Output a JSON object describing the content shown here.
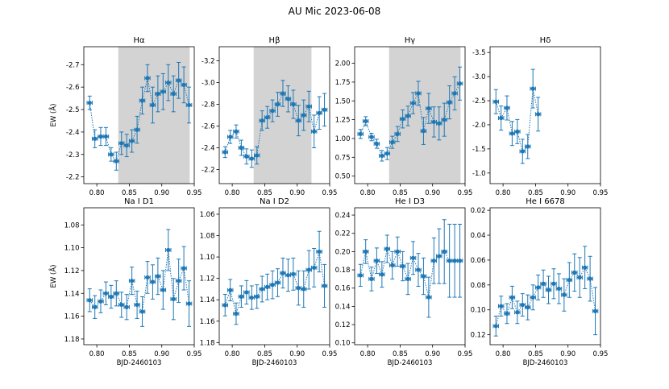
{
  "figure_title": "AU Mic 2023-06-08",
  "colors": {
    "series": "#1f77b4",
    "shade": "#d3d3d3"
  },
  "chart_data": [
    {
      "type": "scatter",
      "title": "Hα",
      "xlabel": "",
      "ylabel": "EW (Å)",
      "xlim": [
        0.78,
        0.95
      ],
      "ylim": [
        -2.17,
        -2.78
      ],
      "inverted_y": true,
      "xticks": [
        "0.80",
        "0.85",
        "0.90",
        "0.95"
      ],
      "xtick_values": [
        0.8,
        0.85,
        0.9,
        0.95
      ],
      "yticks": [
        "-2.2",
        "-2.3",
        "-2.4",
        "-2.5",
        "-2.6",
        "-2.7"
      ],
      "ytick_values": [
        -2.2,
        -2.3,
        -2.4,
        -2.5,
        -2.6,
        -2.7
      ],
      "shade": [
        0.833,
        0.943
      ],
      "x": [
        0.789,
        0.797,
        0.806,
        0.814,
        0.822,
        0.83,
        0.838,
        0.846,
        0.854,
        0.862,
        0.87,
        0.878,
        0.886,
        0.894,
        0.902,
        0.91,
        0.918,
        0.926,
        0.934,
        0.942
      ],
      "y": [
        -2.53,
        -2.37,
        -2.38,
        -2.38,
        -2.3,
        -2.27,
        -2.35,
        -2.34,
        -2.36,
        -2.41,
        -2.54,
        -2.64,
        -2.52,
        -2.57,
        -2.58,
        -2.62,
        -2.57,
        -2.63,
        -2.61,
        -2.52
      ],
      "yerr": [
        0.03,
        0.04,
        0.04,
        0.04,
        0.03,
        0.04,
        0.05,
        0.05,
        0.05,
        0.06,
        0.06,
        0.06,
        0.08,
        0.08,
        0.08,
        0.08,
        0.08,
        0.08,
        0.08,
        0.08
      ]
    },
    {
      "type": "scatter",
      "title": "Hβ",
      "xlabel": "",
      "ylabel": "",
      "xlim": [
        0.78,
        0.95
      ],
      "ylim": [
        -2.07,
        -3.33
      ],
      "inverted_y": true,
      "xticks": [
        "0.80",
        "0.85",
        "0.90",
        "0.95"
      ],
      "xtick_values": [
        0.8,
        0.85,
        0.9,
        0.95
      ],
      "yticks": [
        "-2.2",
        "-2.4",
        "-2.6",
        "-2.8",
        "-3.0",
        "-3.2"
      ],
      "ytick_values": [
        -2.2,
        -2.4,
        -2.6,
        -2.8,
        -3.0,
        -3.2
      ],
      "shade": [
        0.833,
        0.922
      ],
      "x": [
        0.789,
        0.797,
        0.806,
        0.814,
        0.822,
        0.83,
        0.838,
        0.846,
        0.854,
        0.862,
        0.87,
        0.878,
        0.886,
        0.894,
        0.902,
        0.91,
        0.918,
        0.926,
        0.934,
        0.942
      ],
      "y": [
        -2.36,
        -2.5,
        -2.55,
        -2.4,
        -2.32,
        -2.3,
        -2.33,
        -2.65,
        -2.68,
        -2.74,
        -2.8,
        -2.9,
        -2.85,
        -2.8,
        -2.65,
        -2.7,
        -2.78,
        -2.55,
        -2.72,
        -2.75
      ],
      "yerr": [
        0.05,
        0.06,
        0.06,
        0.07,
        0.07,
        0.08,
        0.08,
        0.09,
        0.1,
        0.1,
        0.11,
        0.12,
        0.12,
        0.13,
        0.14,
        0.14,
        0.14,
        0.15,
        0.15,
        0.15
      ]
    },
    {
      "type": "scatter",
      "title": "Hγ",
      "xlabel": "",
      "ylabel": "",
      "xlim": [
        0.78,
        0.95
      ],
      "ylim": [
        0.4,
        2.22
      ],
      "inverted_y": true,
      "xticks": [
        "0.80",
        "0.85",
        "0.90",
        "0.95"
      ],
      "xtick_values": [
        0.8,
        0.85,
        0.9,
        0.95
      ],
      "yticks": [
        "0.50",
        "0.75",
        "1.00",
        "1.25",
        "1.50",
        "1.75",
        "2.00"
      ],
      "ytick_values": [
        0.5,
        0.75,
        1.0,
        1.25,
        1.5,
        1.75,
        2.0
      ],
      "shade": [
        0.833,
        0.943
      ],
      "x": [
        0.789,
        0.797,
        0.806,
        0.814,
        0.822,
        0.83,
        0.838,
        0.846,
        0.854,
        0.862,
        0.87,
        0.878,
        0.886,
        0.894,
        0.902,
        0.91,
        0.918,
        0.926,
        0.934,
        0.942
      ],
      "y": [
        1.06,
        1.23,
        1.02,
        0.93,
        0.77,
        0.8,
        0.95,
        1.06,
        1.26,
        1.3,
        1.47,
        1.6,
        1.1,
        1.4,
        1.22,
        1.2,
        1.25,
        1.48,
        1.6,
        1.73
      ],
      "yerr": [
        0.06,
        0.06,
        0.05,
        0.06,
        0.07,
        0.08,
        0.08,
        0.1,
        0.12,
        0.13,
        0.14,
        0.16,
        0.18,
        0.2,
        0.2,
        0.22,
        0.22,
        0.22,
        0.22,
        0.22
      ]
    },
    {
      "type": "scatter",
      "title": "Hδ",
      "xlabel": "",
      "ylabel": "",
      "xlim": [
        0.78,
        0.95
      ],
      "ylim": [
        -0.78,
        -3.62
      ],
      "inverted_y": true,
      "xticks": [
        "0.80",
        "0.85",
        "0.90",
        "0.95"
      ],
      "xtick_values": [
        0.8,
        0.85,
        0.9,
        0.95
      ],
      "yticks": [
        "-1.0",
        "-1.5",
        "-2.0",
        "-2.5",
        "-3.0",
        "-3.5"
      ],
      "ytick_values": [
        -1.0,
        -1.5,
        -2.0,
        -2.5,
        -3.0,
        -3.5
      ],
      "shade": null,
      "x": [
        0.789,
        0.797,
        0.806,
        0.814,
        0.822,
        0.83,
        0.838,
        0.846,
        0.854,
        0.862,
        0.87,
        0.878
      ],
      "y": [
        -2.48,
        -2.14,
        -2.35,
        -1.82,
        -1.86,
        -1.45,
        -1.55,
        -2.75,
        -2.22,
        null,
        null,
        null
      ],
      "yerr": [
        0.25,
        0.25,
        0.25,
        0.25,
        0.25,
        0.25,
        0.25,
        0.4,
        0.35,
        null,
        null,
        null
      ]
    },
    {
      "type": "scatter",
      "title": "Na I D1",
      "xlabel": "BJD-2460103",
      "ylabel": "EW (Å)",
      "xlim": [
        0.78,
        0.95
      ],
      "ylim": [
        1.185,
        1.065
      ],
      "inverted_y": false,
      "xticks": [
        "0.80",
        "0.85",
        "0.90",
        "0.95"
      ],
      "xtick_values": [
        0.8,
        0.85,
        0.9,
        0.95
      ],
      "yticks": [
        "1.08",
        "1.10",
        "1.12",
        "1.14",
        "1.16",
        "1.18"
      ],
      "ytick_values": [
        1.08,
        1.1,
        1.12,
        1.14,
        1.16,
        1.18
      ],
      "shade": null,
      "x": [
        0.789,
        0.797,
        0.806,
        0.814,
        0.822,
        0.83,
        0.838,
        0.846,
        0.854,
        0.862,
        0.87,
        0.878,
        0.886,
        0.894,
        0.902,
        0.91,
        0.918,
        0.926,
        0.934,
        0.942
      ],
      "y": [
        1.146,
        1.152,
        1.147,
        1.14,
        1.143,
        1.14,
        1.15,
        1.152,
        1.129,
        1.15,
        1.156,
        1.126,
        1.13,
        1.125,
        1.137,
        1.102,
        1.145,
        1.129,
        1.118,
        1.149
      ],
      "yerr": [
        0.01,
        0.01,
        0.01,
        0.01,
        0.01,
        0.011,
        0.011,
        0.011,
        0.012,
        0.012,
        0.013,
        0.014,
        0.015,
        0.016,
        0.017,
        0.018,
        0.018,
        0.019,
        0.019,
        0.02
      ]
    },
    {
      "type": "scatter",
      "title": "Na I D2",
      "xlabel": "BJD-2460103",
      "ylabel": "",
      "xlim": [
        0.78,
        0.95
      ],
      "ylim": [
        1.182,
        1.054
      ],
      "inverted_y": false,
      "xticks": [
        "0.80",
        "0.85",
        "0.90",
        "0.95"
      ],
      "xtick_values": [
        0.8,
        0.85,
        0.9,
        0.95
      ],
      "yticks": [
        "1.06",
        "1.08",
        "1.10",
        "1.12",
        "1.14",
        "1.16",
        "1.18"
      ],
      "ytick_values": [
        1.06,
        1.08,
        1.1,
        1.12,
        1.14,
        1.16,
        1.18
      ],
      "shade": null,
      "x": [
        0.789,
        0.797,
        0.806,
        0.814,
        0.822,
        0.83,
        0.838,
        0.846,
        0.854,
        0.862,
        0.87,
        0.878,
        0.886,
        0.894,
        0.902,
        0.91,
        0.918,
        0.926,
        0.934,
        0.942
      ],
      "y": [
        1.145,
        1.131,
        1.153,
        1.137,
        1.133,
        1.138,
        1.137,
        1.13,
        1.128,
        1.126,
        1.124,
        1.115,
        1.117,
        1.116,
        1.129,
        1.13,
        1.112,
        1.11,
        1.095,
        1.127
      ],
      "yerr": [
        0.01,
        0.01,
        0.01,
        0.01,
        0.011,
        0.011,
        0.011,
        0.012,
        0.012,
        0.013,
        0.013,
        0.014,
        0.015,
        0.015,
        0.016,
        0.017,
        0.018,
        0.018,
        0.019,
        0.02
      ]
    },
    {
      "type": "scatter",
      "title": "He I D3",
      "xlabel": "BJD-2460103",
      "ylabel": "",
      "xlim": [
        0.78,
        0.95
      ],
      "ylim": [
        0.098,
        0.248
      ],
      "inverted_y": true,
      "xticks": [
        "0.80",
        "0.85",
        "0.90",
        "0.95"
      ],
      "xtick_values": [
        0.8,
        0.85,
        0.9,
        0.95
      ],
      "yticks": [
        "0.10",
        "0.12",
        "0.14",
        "0.16",
        "0.18",
        "0.20",
        "0.22",
        "0.24"
      ],
      "ytick_values": [
        0.1,
        0.12,
        0.14,
        0.16,
        0.18,
        0.2,
        0.22,
        0.24
      ],
      "shade": null,
      "x": [
        0.789,
        0.797,
        0.806,
        0.814,
        0.822,
        0.83,
        0.838,
        0.846,
        0.854,
        0.862,
        0.87,
        0.878,
        0.886,
        0.894,
        0.902,
        0.91,
        0.918,
        0.926,
        0.934,
        0.942
      ],
      "y": [
        0.174,
        0.2,
        0.17,
        0.19,
        0.175,
        0.203,
        0.185,
        0.2,
        0.184,
        0.17,
        0.193,
        0.18,
        0.173,
        0.15,
        0.19,
        0.195,
        0.2,
        0.19,
        0.19,
        0.19
      ],
      "yerr": [
        0.012,
        0.013,
        0.013,
        0.014,
        0.014,
        0.015,
        0.015,
        0.016,
        0.016,
        0.017,
        0.018,
        0.018,
        0.02,
        0.022,
        0.025,
        0.03,
        0.035,
        0.04,
        0.04,
        0.04
      ]
    },
    {
      "type": "scatter",
      "title": "He I 6678",
      "xlabel": "BJD-2460103",
      "ylabel": "",
      "xlim": [
        0.78,
        0.95
      ],
      "ylim": [
        0.128,
        0.018
      ],
      "inverted_y": false,
      "xticks": [
        "0.80",
        "0.85",
        "0.90",
        "0.95"
      ],
      "xtick_values": [
        0.8,
        0.85,
        0.9,
        0.95
      ],
      "yticks": [
        "0.02",
        "0.04",
        "0.06",
        "0.08",
        "0.10",
        "0.12"
      ],
      "ytick_values": [
        0.02,
        0.04,
        0.06,
        0.08,
        0.1,
        0.12
      ],
      "shade": null,
      "x": [
        0.789,
        0.797,
        0.806,
        0.814,
        0.822,
        0.83,
        0.838,
        0.846,
        0.854,
        0.862,
        0.87,
        0.878,
        0.886,
        0.894,
        0.902,
        0.91,
        0.918,
        0.926,
        0.934,
        0.942
      ],
      "y": [
        0.113,
        0.097,
        0.103,
        0.09,
        0.102,
        0.096,
        0.098,
        0.09,
        0.082,
        0.079,
        0.084,
        0.079,
        0.083,
        0.088,
        0.076,
        0.07,
        0.074,
        0.066,
        0.075,
        0.101
      ],
      "yerr": [
        0.008,
        0.008,
        0.008,
        0.009,
        0.009,
        0.009,
        0.01,
        0.01,
        0.01,
        0.011,
        0.011,
        0.012,
        0.012,
        0.013,
        0.014,
        0.015,
        0.016,
        0.017,
        0.018,
        0.019
      ]
    }
  ]
}
